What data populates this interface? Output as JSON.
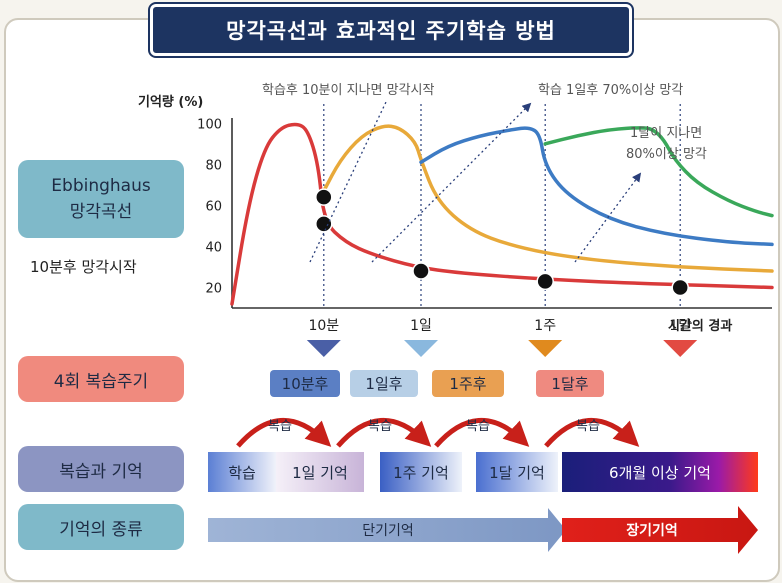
{
  "title": "망각곡선과 효과적인 주기학습 방법",
  "labels": {
    "ebbinghaus_line1": "Ebbinghaus",
    "ebbinghaus_line2": "망각곡선",
    "ebbinghaus_note": "10분후 망각시작",
    "review_cycle": "4회 복습주기",
    "review_memory": "복습과 기억",
    "memory_type": "기억의 종류"
  },
  "annotations": {
    "after_10min": "학습후 10분이 지나면 망각시작",
    "after_1day": "학습 1일후 70%이상 망각",
    "after_1month_line1": "1달이 지나면",
    "after_1month_line2": "80%이상 망각"
  },
  "chart_data": {
    "type": "line",
    "ylabel": "기억량 (%)",
    "xlabel": "시간의 경과",
    "y_ticks": [
      "100",
      "80",
      "60",
      "40",
      "20"
    ],
    "ylim": [
      10,
      105
    ],
    "x_marks": [
      "10분",
      "1일",
      "1주",
      "1달"
    ],
    "series": [
      {
        "color": "#d93a3a",
        "points": [
          [
            0,
            12
          ],
          [
            3,
            60
          ],
          [
            6,
            88
          ],
          [
            9,
            98
          ],
          [
            12,
            100
          ],
          [
            14,
            97
          ],
          [
            16,
            80
          ],
          [
            17,
            52
          ],
          [
            21,
            42
          ],
          [
            26,
            36
          ],
          [
            34,
            30
          ],
          [
            42,
            27
          ],
          [
            58,
            24
          ],
          [
            75,
            22
          ],
          [
            100,
            20
          ]
        ]
      },
      {
        "color": "#e8a93a",
        "points": [
          [
            17,
            67
          ],
          [
            20,
            82
          ],
          [
            24,
            94
          ],
          [
            28,
            99
          ],
          [
            31,
            98
          ],
          [
            34,
            91
          ],
          [
            35,
            82
          ],
          [
            38,
            62
          ],
          [
            44,
            48
          ],
          [
            52,
            40
          ],
          [
            64,
            34
          ],
          [
            82,
            30
          ],
          [
            100,
            28
          ]
        ]
      },
      {
        "color": "#3d7bc4",
        "points": [
          [
            35,
            81
          ],
          [
            40,
            89
          ],
          [
            46,
            94
          ],
          [
            52,
            97
          ],
          [
            55,
            98
          ],
          [
            57,
            95
          ],
          [
            58,
            79
          ],
          [
            62,
            65
          ],
          [
            70,
            53
          ],
          [
            80,
            46
          ],
          [
            92,
            42
          ],
          [
            100,
            41
          ]
        ]
      },
      {
        "color": "#3aa85a",
        "points": [
          [
            58,
            90
          ],
          [
            64,
            94
          ],
          [
            70,
            97
          ],
          [
            76,
            98
          ],
          [
            78,
            97
          ],
          [
            80,
            92
          ],
          [
            82,
            82
          ],
          [
            86,
            71
          ],
          [
            92,
            62
          ],
          [
            97,
            57
          ],
          [
            100,
            55
          ]
        ]
      }
    ],
    "markers": [
      [
        17,
        64
      ],
      [
        17,
        51
      ],
      [
        35,
        28
      ],
      [
        58,
        23
      ],
      [
        83,
        20
      ]
    ]
  },
  "review_tags": [
    {
      "label": "10분후",
      "color": "#5b7fc4"
    },
    {
      "label": "1일후",
      "color": "#b7cfe6"
    },
    {
      "label": "1주후",
      "color": "#e9a052"
    },
    {
      "label": "1달후",
      "color": "#ef8a80"
    }
  ],
  "arrow_colors": [
    "#4a5fa6",
    "#8ab8de",
    "#e08a1e",
    "#e24a42"
  ],
  "review_label": "복습",
  "memory_segments": [
    {
      "label": "학습"
    },
    {
      "label": "1일 기억"
    },
    {
      "label": "1주 기억"
    },
    {
      "label": "1달 기억"
    },
    {
      "label": "6개월 이상 기억"
    }
  ],
  "memory_kind": {
    "short": "단기기억",
    "long": "장기기억"
  }
}
